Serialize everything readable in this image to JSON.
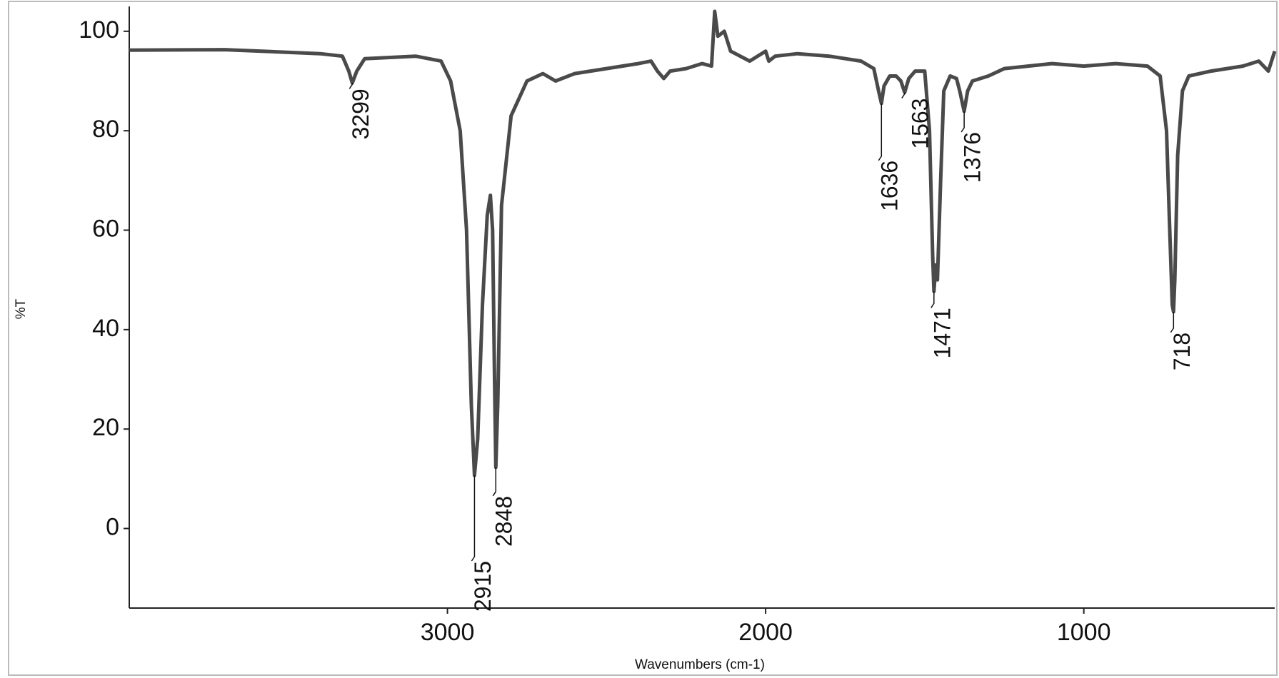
{
  "chart_data": {
    "type": "line",
    "xlabel": "Wavenumbers (cm-1)",
    "ylabel": "%T",
    "xlim": [
      4000,
      400
    ],
    "ylim": [
      -16,
      105
    ],
    "xticks": [
      3000,
      2000,
      1000
    ],
    "yticks": [
      0,
      20,
      40,
      60,
      80,
      100
    ],
    "series": [
      {
        "name": "spectrum",
        "color": "#4a4a4a",
        "x": [
          4000,
          3700,
          3400,
          3330,
          3310,
          3299,
          3285,
          3260,
          3100,
          3020,
          2990,
          2960,
          2940,
          2925,
          2915,
          2905,
          2890,
          2875,
          2865,
          2858,
          2852,
          2848,
          2842,
          2830,
          2800,
          2750,
          2700,
          2660,
          2600,
          2400,
          2360,
          2340,
          2320,
          2300,
          2250,
          2200,
          2170,
          2160,
          2150,
          2130,
          2110,
          2050,
          2000,
          1990,
          1970,
          1900,
          1800,
          1700,
          1660,
          1645,
          1636,
          1628,
          1610,
          1590,
          1575,
          1563,
          1550,
          1530,
          1500,
          1485,
          1475,
          1471,
          1465,
          1460,
          1450,
          1440,
          1420,
          1400,
          1390,
          1376,
          1365,
          1350,
          1300,
          1250,
          1100,
          1000,
          900,
          800,
          760,
          740,
          730,
          722,
          718,
          714,
          705,
          690,
          670,
          600,
          500,
          450,
          420,
          400
        ],
        "values": [
          96.2,
          96.3,
          95.5,
          95,
          92,
          89.6,
          92,
          94.5,
          95,
          94,
          90,
          80,
          60,
          25,
          10.7,
          18,
          45,
          63,
          67,
          60,
          30,
          12.3,
          25,
          65,
          83,
          90,
          91.5,
          90,
          91.5,
          93.5,
          94,
          92,
          90.5,
          92,
          92.5,
          93.5,
          93,
          104,
          99,
          100,
          96,
          94,
          96,
          94,
          95,
          95.5,
          95,
          94,
          92.5,
          88,
          85.5,
          89,
          91,
          91,
          90,
          87.7,
          90.5,
          92,
          92,
          80,
          55,
          47.7,
          53,
          50,
          70,
          88,
          91,
          90.5,
          88,
          83.9,
          88,
          90,
          91,
          92.5,
          93.5,
          93,
          93.5,
          93,
          91,
          80,
          60,
          45,
          43.6,
          50,
          75,
          88,
          91,
          92,
          93,
          94,
          92,
          96
        ]
      }
    ],
    "peaks": [
      {
        "x": 3299,
        "y": 89.6
      },
      {
        "x": 2915,
        "y": 10.7
      },
      {
        "x": 2848,
        "y": 12.3
      },
      {
        "x": 1636,
        "y": 85.5
      },
      {
        "x": 1563,
        "y": 87.7
      },
      {
        "x": 1471,
        "y": 47.7
      },
      {
        "x": 1376,
        "y": 83.9
      },
      {
        "x": 718,
        "y": 43.6
      }
    ]
  }
}
